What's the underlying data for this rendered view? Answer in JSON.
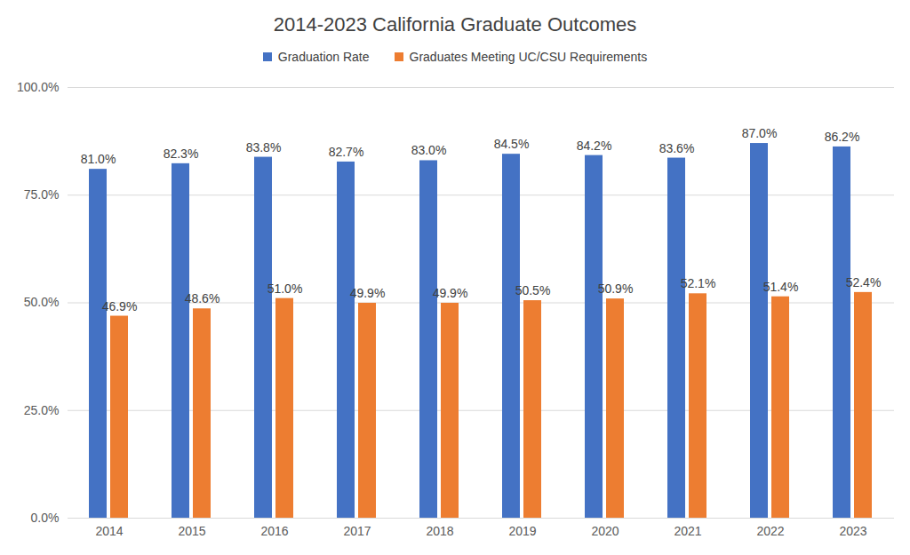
{
  "chart_data": {
    "type": "bar",
    "title": "2014-2023 California Graduate Outcomes",
    "categories": [
      "2014",
      "2015",
      "2016",
      "2017",
      "2018",
      "2019",
      "2020",
      "2021",
      "2022",
      "2023"
    ],
    "series": [
      {
        "name": "Graduation Rate",
        "color": "#4472c4",
        "values": [
          81.0,
          82.3,
          83.8,
          82.7,
          83.0,
          84.5,
          84.2,
          83.6,
          87.0,
          86.2
        ],
        "value_labels": [
          "81.0%",
          "82.3%",
          "83.8%",
          "82.7%",
          "83.0%",
          "84.5%",
          "84.2%",
          "83.6%",
          "87.0%",
          "86.2%"
        ]
      },
      {
        "name": "Graduates Meeting UC/CSU Requirements",
        "color": "#ed7d31",
        "values": [
          46.9,
          48.6,
          51.0,
          49.9,
          49.9,
          50.5,
          50.9,
          52.1,
          51.4,
          52.4
        ],
        "value_labels": [
          "46.9%",
          "48.6%",
          "51.0%",
          "49.9%",
          "49.9%",
          "50.5%",
          "50.9%",
          "52.1%",
          "51.4%",
          "52.4%"
        ]
      }
    ],
    "ylim": [
      0,
      100
    ],
    "yticks": [
      {
        "value": 0,
        "label": "0.0%"
      },
      {
        "value": 25,
        "label": "25.0%"
      },
      {
        "value": 50,
        "label": "50.0%"
      },
      {
        "value": 75,
        "label": "75.0%"
      },
      {
        "value": 100,
        "label": "100.0%"
      }
    ],
    "grid": true,
    "legend": "top",
    "data_labels": true
  }
}
